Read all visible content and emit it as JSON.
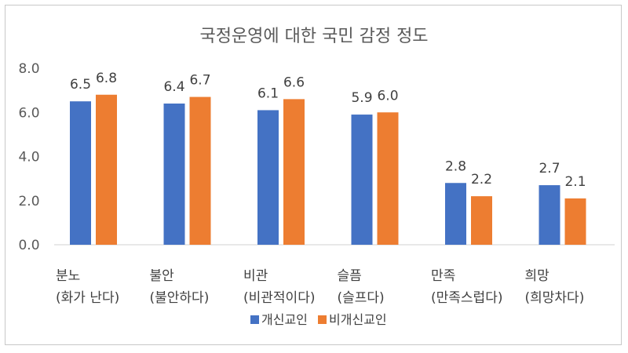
{
  "chart_data": {
    "type": "bar",
    "title": "국정운영에 대한 국민 감정 정도",
    "categories": [
      [
        "분노",
        "(화가 난다)"
      ],
      [
        "불안",
        "(불안하다)"
      ],
      [
        "비관",
        "(비관적이다)"
      ],
      [
        "슬픔",
        "(슬프다)"
      ],
      [
        "만족",
        "(만족스럽다)"
      ],
      [
        "희망",
        "(희망차다)"
      ]
    ],
    "series": [
      {
        "name": "개신교인",
        "values": [
          6.5,
          6.4,
          6.1,
          5.9,
          2.8,
          2.7
        ],
        "labels": [
          "6.5",
          "6.4",
          "6.1",
          "5.9",
          "2.8",
          "2.7"
        ],
        "color": "#4472C4"
      },
      {
        "name": "비개신교인",
        "values": [
          6.8,
          6.7,
          6.6,
          6.0,
          2.2,
          2.1
        ],
        "labels": [
          "6.8",
          "6.7",
          "6.6",
          "6.0",
          "2.2",
          "2.1"
        ],
        "color": "#ED7D31"
      }
    ],
    "ylim": [
      0,
      8
    ],
    "yticks": [
      "0.0",
      "2.0",
      "4.0",
      "6.0",
      "8.0"
    ],
    "grid": false,
    "legend": "bottom",
    "xlabel": "",
    "ylabel": ""
  }
}
